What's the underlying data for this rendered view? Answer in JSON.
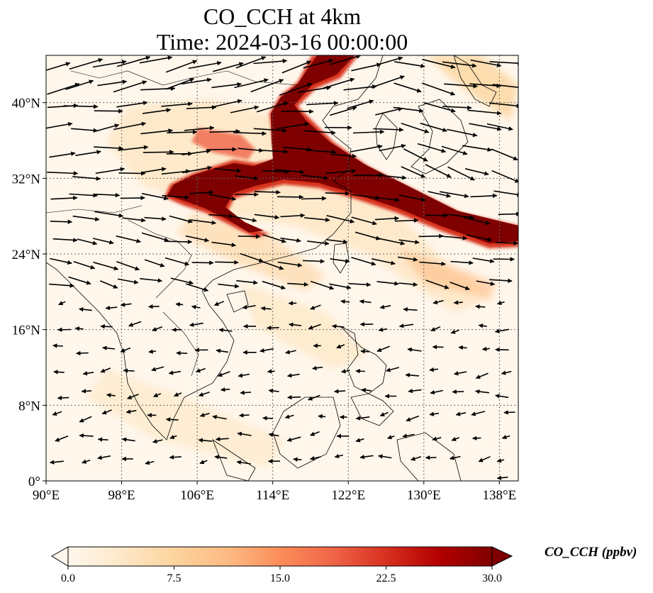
{
  "title": "CO_CCH at 4km",
  "subtitle": "Time: 2024-03-16 00:00:00",
  "map": {
    "lon_range": [
      90,
      140
    ],
    "lat_range": [
      0,
      45
    ],
    "lon_ticks": [
      "90°E",
      "98°E",
      "106°E",
      "114°E",
      "122°E",
      "130°E",
      "138°E"
    ],
    "lat_ticks": [
      "0°",
      "8°N",
      "16°N",
      "24°N",
      "32°N",
      "40°N"
    ],
    "gridlines": true
  },
  "colorbar": {
    "label": "CO_CCH (ppbv)",
    "ticks": [
      "0.0",
      "7.5",
      "15.0",
      "22.5",
      "30.0"
    ],
    "vmin": 0,
    "vmax": 30,
    "extend": "both",
    "colors": [
      "#fff7ec",
      "#fee8c8",
      "#fdd49e",
      "#fdbb84",
      "#fc8d59",
      "#ef6548",
      "#d7301f",
      "#b30000",
      "#7f0000"
    ]
  },
  "plume_level": 30,
  "wind_field": "black vectors"
}
